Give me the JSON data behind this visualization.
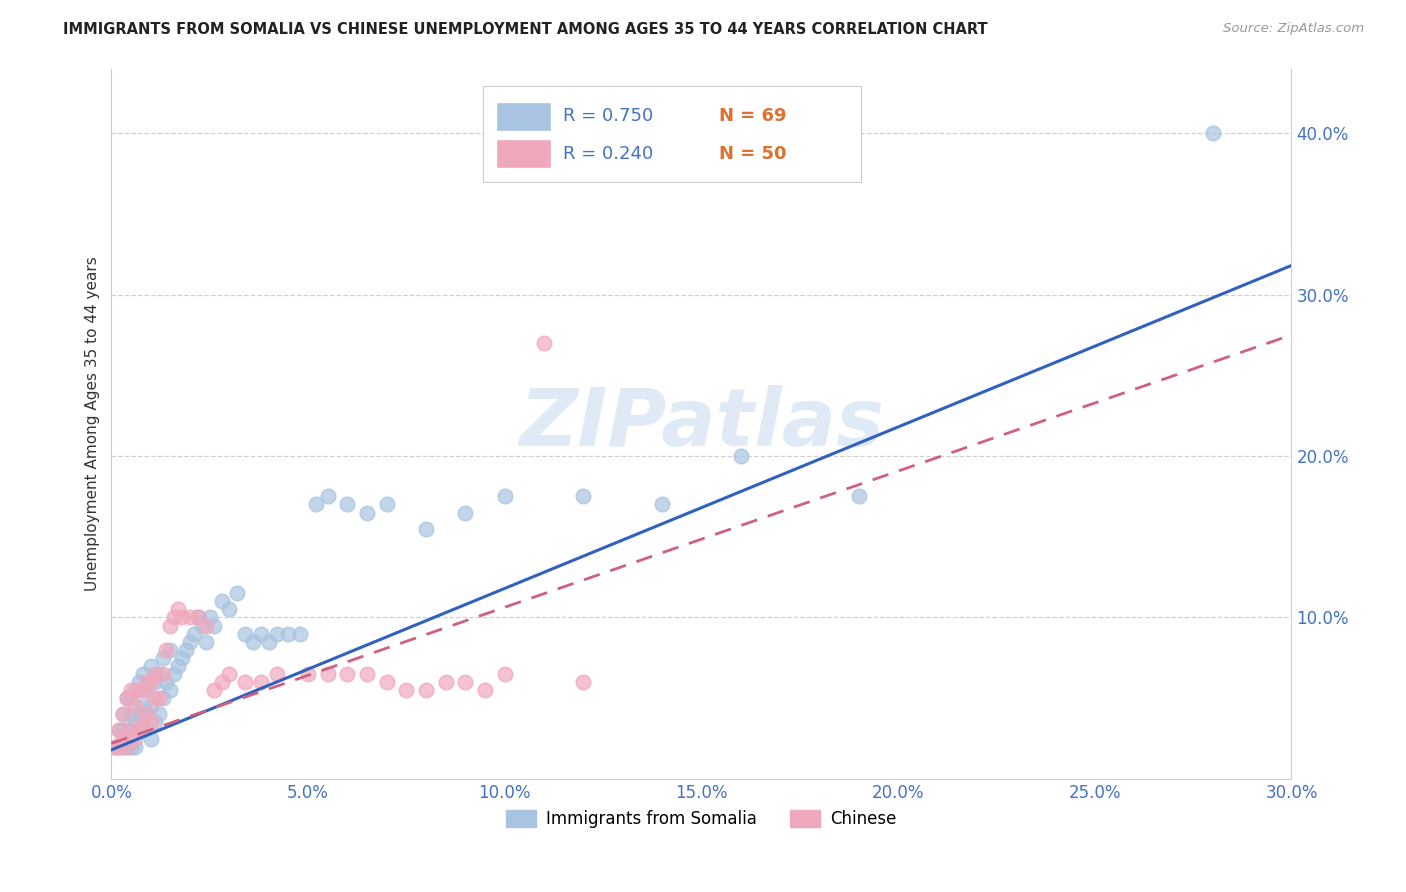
{
  "title": "IMMIGRANTS FROM SOMALIA VS CHINESE UNEMPLOYMENT AMONG AGES 35 TO 44 YEARS CORRELATION CHART",
  "source": "Source: ZipAtlas.com",
  "ylabel": "Unemployment Among Ages 35 to 44 years",
  "xlim": [
    0.0,
    0.3
  ],
  "ylim": [
    0.0,
    0.44
  ],
  "xtick_labels": [
    "0.0%",
    "5.0%",
    "10.0%",
    "15.0%",
    "20.0%",
    "25.0%",
    "30.0%"
  ],
  "xtick_values": [
    0.0,
    0.05,
    0.1,
    0.15,
    0.2,
    0.25,
    0.3
  ],
  "ytick_labels": [
    "10.0%",
    "20.0%",
    "30.0%",
    "40.0%"
  ],
  "ytick_values": [
    0.1,
    0.2,
    0.3,
    0.4
  ],
  "somalia_color": "#a8c4e0",
  "chinese_color": "#f0a8bc",
  "somalia_line_color": "#3060c0",
  "chinese_line_color": "#d06080",
  "somalia_R": 0.75,
  "somalia_N": 69,
  "chinese_R": 0.24,
  "chinese_N": 50,
  "legend_somalia_label": "Immigrants from Somalia",
  "legend_chinese_label": "Chinese",
  "watermark": "ZIPatlas",
  "somalia_x": [
    0.001,
    0.002,
    0.002,
    0.003,
    0.003,
    0.003,
    0.004,
    0.004,
    0.004,
    0.005,
    0.005,
    0.005,
    0.006,
    0.006,
    0.006,
    0.007,
    0.007,
    0.007,
    0.008,
    0.008,
    0.008,
    0.009,
    0.009,
    0.01,
    0.01,
    0.01,
    0.011,
    0.011,
    0.012,
    0.012,
    0.013,
    0.013,
    0.014,
    0.015,
    0.015,
    0.016,
    0.017,
    0.018,
    0.019,
    0.02,
    0.021,
    0.022,
    0.023,
    0.024,
    0.025,
    0.026,
    0.028,
    0.03,
    0.032,
    0.034,
    0.036,
    0.038,
    0.04,
    0.042,
    0.045,
    0.048,
    0.052,
    0.055,
    0.06,
    0.065,
    0.07,
    0.08,
    0.09,
    0.1,
    0.12,
    0.14,
    0.16,
    0.19,
    0.28
  ],
  "somalia_y": [
    0.02,
    0.02,
    0.03,
    0.02,
    0.03,
    0.04,
    0.02,
    0.03,
    0.05,
    0.02,
    0.04,
    0.05,
    0.02,
    0.035,
    0.055,
    0.03,
    0.04,
    0.06,
    0.03,
    0.045,
    0.065,
    0.04,
    0.055,
    0.025,
    0.045,
    0.07,
    0.035,
    0.06,
    0.04,
    0.065,
    0.05,
    0.075,
    0.06,
    0.055,
    0.08,
    0.065,
    0.07,
    0.075,
    0.08,
    0.085,
    0.09,
    0.1,
    0.095,
    0.085,
    0.1,
    0.095,
    0.11,
    0.105,
    0.115,
    0.09,
    0.085,
    0.09,
    0.085,
    0.09,
    0.09,
    0.09,
    0.17,
    0.175,
    0.17,
    0.165,
    0.17,
    0.155,
    0.165,
    0.175,
    0.175,
    0.17,
    0.2,
    0.175,
    0.4
  ],
  "chinese_x": [
    0.001,
    0.002,
    0.002,
    0.003,
    0.003,
    0.004,
    0.004,
    0.005,
    0.005,
    0.006,
    0.006,
    0.007,
    0.007,
    0.008,
    0.008,
    0.009,
    0.009,
    0.01,
    0.01,
    0.011,
    0.011,
    0.012,
    0.013,
    0.014,
    0.015,
    0.016,
    0.017,
    0.018,
    0.02,
    0.022,
    0.024,
    0.026,
    0.028,
    0.03,
    0.034,
    0.038,
    0.042,
    0.05,
    0.055,
    0.06,
    0.065,
    0.07,
    0.075,
    0.08,
    0.085,
    0.09,
    0.095,
    0.1,
    0.11,
    0.12
  ],
  "chinese_y": [
    0.02,
    0.02,
    0.03,
    0.025,
    0.04,
    0.02,
    0.05,
    0.03,
    0.055,
    0.025,
    0.045,
    0.03,
    0.055,
    0.035,
    0.055,
    0.04,
    0.06,
    0.035,
    0.06,
    0.05,
    0.065,
    0.05,
    0.065,
    0.08,
    0.095,
    0.1,
    0.105,
    0.1,
    0.1,
    0.1,
    0.095,
    0.055,
    0.06,
    0.065,
    0.06,
    0.06,
    0.065,
    0.065,
    0.065,
    0.065,
    0.065,
    0.06,
    0.055,
    0.055,
    0.06,
    0.06,
    0.055,
    0.065,
    0.27,
    0.06
  ],
  "somalia_line_x0": 0.0,
  "somalia_line_y0": 0.018,
  "somalia_line_x1": 0.3,
  "somalia_line_y1": 0.318,
  "chinese_line_x0": 0.0,
  "chinese_line_y0": 0.022,
  "chinese_line_x1": 0.3,
  "chinese_line_y1": 0.275
}
